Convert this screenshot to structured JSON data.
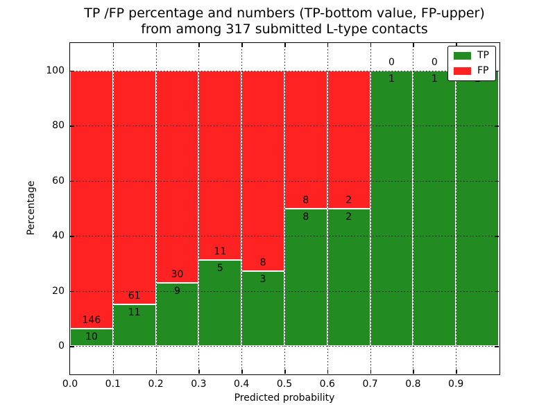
{
  "title": {
    "line1": "TP /FP percentage and numbers (TP-bottom value, FP-upper)",
    "line2": "from among 317 submitted L-type contacts"
  },
  "axes": {
    "ylabel": "Percentage",
    "xlabel": "Predicted probability",
    "x_tick_labels": [
      "0.0",
      "0.1",
      "0.2",
      "0.3",
      "0.4",
      "0.5",
      "0.6",
      "0.7",
      "0.8",
      "0.9"
    ],
    "y_tick_labels": [
      "0",
      "20",
      "40",
      "60",
      "80",
      "100"
    ],
    "xlim": [
      0.0,
      1.0
    ],
    "ylim": [
      -10,
      110
    ],
    "grid": "dotted black, drawn above bars"
  },
  "legend": {
    "position": "upper right",
    "entries": [
      {
        "label": "TP",
        "color": "#228b22"
      },
      {
        "label": "FP",
        "color": "#ff2222"
      }
    ]
  },
  "colors": {
    "tp": "#228b22",
    "fp": "#ff2222",
    "bar_edge": "#ffffff",
    "axis": "#000000",
    "background": "#ffffff"
  },
  "chart_data": {
    "type": "bar",
    "stacked": true,
    "normalized_to_percent": 100,
    "total_contacts": 317,
    "title": "TP /FP percentage and numbers (TP-bottom value, FP-upper) from among 317 submitted L-type contacts",
    "xlabel": "Predicted probability",
    "ylabel": "Percentage",
    "ylim": [
      -10,
      110
    ],
    "bin_width": 0.1,
    "bins": [
      {
        "x0": 0.0,
        "x1": 0.1,
        "tp": 10,
        "fp": 146,
        "tp_pct": 6.41,
        "fp_pct": 93.59
      },
      {
        "x0": 0.1,
        "x1": 0.2,
        "tp": 11,
        "fp": 61,
        "tp_pct": 15.28,
        "fp_pct": 84.72
      },
      {
        "x0": 0.2,
        "x1": 0.3,
        "tp": 9,
        "fp": 30,
        "tp_pct": 23.08,
        "fp_pct": 76.92
      },
      {
        "x0": 0.3,
        "x1": 0.4,
        "tp": 5,
        "fp": 11,
        "tp_pct": 31.25,
        "fp_pct": 68.75
      },
      {
        "x0": 0.4,
        "x1": 0.5,
        "tp": 3,
        "fp": 8,
        "tp_pct": 27.27,
        "fp_pct": 72.73
      },
      {
        "x0": 0.5,
        "x1": 0.6,
        "tp": 8,
        "fp": 8,
        "tp_pct": 50.0,
        "fp_pct": 50.0
      },
      {
        "x0": 0.6,
        "x1": 0.7,
        "tp": 2,
        "fp": 2,
        "tp_pct": 50.0,
        "fp_pct": 50.0
      },
      {
        "x0": 0.7,
        "x1": 0.8,
        "tp": 1,
        "fp": 0,
        "tp_pct": 100.0,
        "fp_pct": 0.0
      },
      {
        "x0": 0.8,
        "x1": 0.9,
        "tp": 1,
        "fp": 0,
        "tp_pct": 100.0,
        "fp_pct": 0.0
      },
      {
        "x0": 0.9,
        "x1": 1.0,
        "tp": 1,
        "fp": 0,
        "tp_pct": 100.0,
        "fp_pct": 0.0
      }
    ],
    "series": [
      {
        "name": "TP",
        "values": [
          10,
          11,
          9,
          5,
          3,
          8,
          2,
          1,
          1,
          1
        ],
        "color": "#228b22"
      },
      {
        "name": "FP",
        "values": [
          146,
          61,
          30,
          11,
          8,
          8,
          2,
          0,
          0,
          0
        ],
        "color": "#ff2222"
      }
    ],
    "annotation_rule": "FP count printed above the TP/FP boundary, TP count printed below it"
  }
}
